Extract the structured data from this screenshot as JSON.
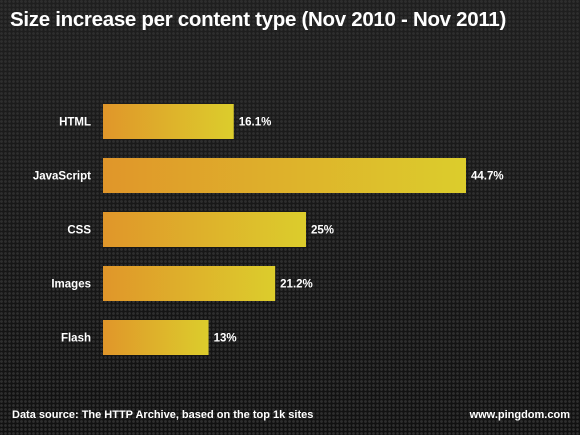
{
  "title": "Size increase per content type (Nov 2010 - Nov 2011)",
  "footer": {
    "source": "Data source: The HTTP Archive, based on the top 1k sites",
    "site": "www.pingdom.com"
  },
  "colors": {
    "bar_start": "#e0962a",
    "bar_end": "#dccd2c",
    "background": "#1b1b1b",
    "text": "#ffffff"
  },
  "chart_data": {
    "type": "bar",
    "orientation": "horizontal",
    "title": "Size increase per content type (Nov 2010 - Nov 2011)",
    "categories": [
      "HTML",
      "JavaScript",
      "CSS",
      "Images",
      "Flash"
    ],
    "values": [
      16.1,
      44.7,
      25,
      21.2,
      13
    ],
    "value_labels": [
      "16.1%",
      "44.7%",
      "25%",
      "21.2%",
      "13%"
    ],
    "xlabel": "",
    "ylabel": "",
    "xlim": [
      0,
      44.7
    ],
    "grid": false,
    "legend": "none"
  }
}
